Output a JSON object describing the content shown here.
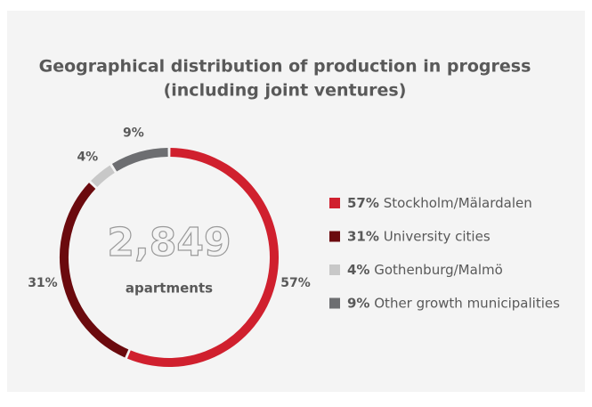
{
  "chart_data": {
    "type": "donut",
    "title": [
      "Geographical distribution of production in progress",
      "(including joint ventures)"
    ],
    "center_value": {
      "value": 2849,
      "label": "2,849"
    },
    "center_text": "apartments",
    "categories": [
      "Stockholm/Mälardalen",
      "University cities",
      "Gothenburg/Malmö",
      "Other growth municipalities"
    ],
    "values": [
      57,
      31,
      4,
      9
    ],
    "value_labels": [
      "57%",
      "31%",
      "4%",
      "9%"
    ],
    "colors": [
      "#d0202e",
      "#6b0a0e",
      "#c8c8c8",
      "#6d6e71"
    ]
  }
}
